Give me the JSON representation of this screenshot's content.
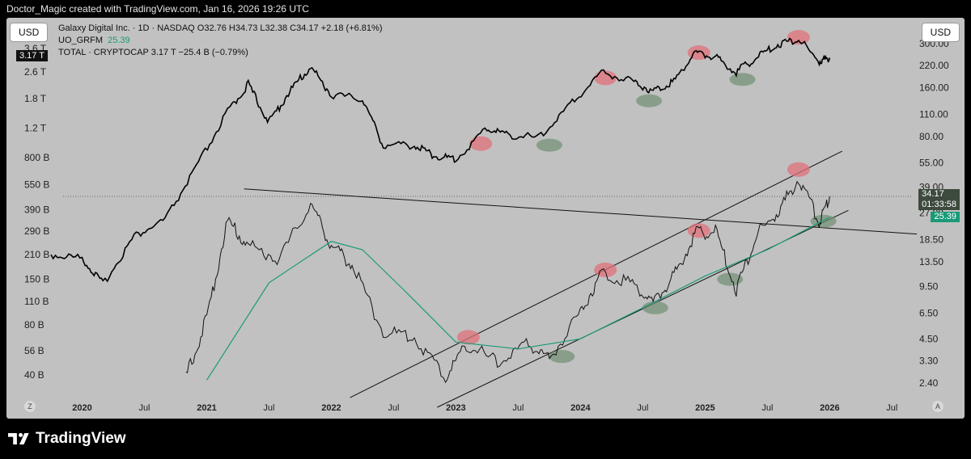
{
  "attribution": "Doctor_Magic created with TradingView.com, Jan 16, 2026 19:26 UTC",
  "left_currency": "USD",
  "right_currency": "USD",
  "legend": {
    "main": "Galaxy Digital Inc. · 1D · NASDAQ  O32.76  H34.73  L32.38  C34.17  +2.18 (+6.81%)",
    "indicator_name": "UO_GRFM",
    "indicator_value": "25.39",
    "total": "TOTAL · CRYPTOCAP  3.17 T  −25.4 B (−0.79%)"
  },
  "left_current_tag": "3.17 T",
  "price_tags": {
    "price": "34.17",
    "countdown": "01:33:58",
    "indicator": "25.39"
  },
  "footer": {
    "brand": "TradingView"
  },
  "corner_buttons": {
    "left": "Z",
    "right": "A"
  },
  "colors": {
    "background": "#000000",
    "chart_bg": "#c1c1c1",
    "indicator_line": "#1a9a78",
    "price_tag_bg": "#3d4a3d",
    "indicator_tag_bg": "#1a9a78",
    "red_highlight": "#e0707a",
    "green_highlight": "#6f8f74"
  },
  "chart_data": {
    "type": "line",
    "left_axis": {
      "title": "",
      "scale": "log",
      "ticks": [
        "3.6 T",
        "2.6 T",
        "1.8 T",
        "1.2 T",
        "800 B",
        "550 B",
        "390 B",
        "290 B",
        "210 B",
        "150 B",
        "110 B",
        "80 B",
        "56 B",
        "40 B"
      ]
    },
    "right_axis": {
      "title": "",
      "scale": "log",
      "ticks": [
        "300.00",
        "220.00",
        "160.00",
        "110.00",
        "80.00",
        "55.00",
        "39.00",
        "27.00",
        "18.50",
        "13.50",
        "9.50",
        "6.50",
        "4.50",
        "3.30",
        "2.40"
      ]
    },
    "x_axis": {
      "ticks": [
        "2020",
        "Jul",
        "2021",
        "Jul",
        "2022",
        "Jul",
        "2023",
        "Jul",
        "2024",
        "Jul",
        "2025",
        "Jul",
        "2026",
        "Jul"
      ]
    },
    "series": [
      {
        "name": "TOTAL · CRYPTOCAP",
        "axis": "left",
        "color": "#000000",
        "points": [
          [
            "2019-10",
            210000000000.0
          ],
          [
            "2020-01",
            200000000000.0
          ],
          [
            "2020-03",
            140000000000.0
          ],
          [
            "2020-06",
            270000000000.0
          ],
          [
            "2020-09",
            340000000000.0
          ],
          [
            "2020-12",
            700000000000.0
          ],
          [
            "2021-03",
            1500000000000.0
          ],
          [
            "2021-05",
            2200000000000.0
          ],
          [
            "2021-07",
            1300000000000.0
          ],
          [
            "2021-09",
            2000000000000.0
          ],
          [
            "2021-11",
            2800000000000.0
          ],
          [
            "2022-01",
            1900000000000.0
          ],
          [
            "2022-04",
            1800000000000.0
          ],
          [
            "2022-06",
            950000000000.0
          ],
          [
            "2022-09",
            950000000000.0
          ],
          [
            "2022-11",
            820000000000.0
          ],
          [
            "2023-01",
            780000000000.0
          ],
          [
            "2023-04",
            1200000000000.0
          ],
          [
            "2023-06",
            1100000000000.0
          ],
          [
            "2023-09",
            1050000000000.0
          ],
          [
            "2023-12",
            1650000000000.0
          ],
          [
            "2024-03",
            2600000000000.0
          ],
          [
            "2024-06",
            2300000000000.0
          ],
          [
            "2024-08",
            2000000000000.0
          ],
          [
            "2024-10",
            2300000000000.0
          ],
          [
            "2024-12",
            3400000000000.0
          ],
          [
            "2025-02",
            3200000000000.0
          ],
          [
            "2025-04",
            2600000000000.0
          ],
          [
            "2025-06",
            3200000000000.0
          ],
          [
            "2025-08",
            3800000000000.0
          ],
          [
            "2025-10",
            4100000000000.0
          ],
          [
            "2025-12",
            3000000000000.0
          ],
          [
            "2026-01",
            3170000000000.0
          ]
        ]
      },
      {
        "name": "Galaxy Digital Inc.",
        "axis": "right",
        "color": "#111111",
        "points": [
          [
            "2020-11",
            2.6
          ],
          [
            "2021-01",
            6
          ],
          [
            "2021-03",
            24
          ],
          [
            "2021-05",
            17
          ],
          [
            "2021-08",
            14
          ],
          [
            "2021-11",
            31
          ],
          [
            "2022-01",
            17
          ],
          [
            "2022-03",
            13
          ],
          [
            "2022-06",
            5
          ],
          [
            "2022-09",
            4.6
          ],
          [
            "2022-12",
            2.6
          ],
          [
            "2023-02",
            4.2
          ],
          [
            "2023-05",
            3.2
          ],
          [
            "2023-08",
            4.2
          ],
          [
            "2023-10",
            3.4
          ],
          [
            "2024-01",
            6.6
          ],
          [
            "2024-03",
            11.5
          ],
          [
            "2024-06",
            10
          ],
          [
            "2024-08",
            7.5
          ],
          [
            "2024-10",
            11
          ],
          [
            "2024-12",
            20
          ],
          [
            "2025-02",
            21
          ],
          [
            "2025-04",
            9
          ],
          [
            "2025-06",
            20
          ],
          [
            "2025-08",
            27
          ],
          [
            "2025-10",
            44
          ],
          [
            "2025-12",
            24
          ],
          [
            "2026-01",
            34.17
          ]
        ]
      },
      {
        "name": "UO_GRFM",
        "axis": "right",
        "color": "#1a9a78",
        "points": [
          [
            "2021-01",
            2.5
          ],
          [
            "2021-07",
            10
          ],
          [
            "2022-01",
            18
          ],
          [
            "2022-04",
            16
          ],
          [
            "2022-08",
            9
          ],
          [
            "2023-01",
            4.3
          ],
          [
            "2023-07",
            3.9
          ],
          [
            "2024-01",
            4.5
          ],
          [
            "2024-07",
            7
          ],
          [
            "2025-01",
            11
          ],
          [
            "2025-07",
            16
          ],
          [
            "2026-01",
            25.39
          ]
        ]
      }
    ]
  }
}
